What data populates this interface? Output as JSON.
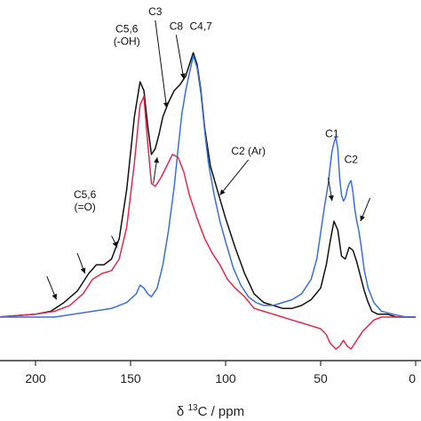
{
  "chart_data": {
    "type": "line",
    "xlabel_prefix": "δ ",
    "xlabel_sup": "13",
    "xlabel_suffix": "C  / ppm",
    "xlim": [
      220,
      0
    ],
    "x_reversed": true,
    "ylim": [
      -0.12,
      1.0
    ],
    "grid": false,
    "xticks": [
      200,
      150,
      100,
      50,
      0
    ],
    "series": [
      {
        "color": "#111111",
        "x": [
          220,
          200,
          192,
          185,
          178,
          172,
          168,
          164,
          160,
          156,
          152,
          148,
          145,
          143,
          141,
          139,
          137,
          135,
          133,
          130,
          127,
          124,
          121,
          119,
          117,
          115,
          113,
          111,
          108,
          104,
          100,
          95,
          90,
          85,
          80,
          75,
          70,
          65,
          60,
          55,
          50,
          47,
          45,
          43,
          41,
          39,
          37,
          35,
          33,
          31,
          29,
          27,
          25,
          23,
          20,
          15,
          10,
          5,
          0
        ],
        "y": [
          0.0,
          0.01,
          0.02,
          0.05,
          0.09,
          0.15,
          0.18,
          0.18,
          0.2,
          0.27,
          0.44,
          0.69,
          0.81,
          0.78,
          0.66,
          0.56,
          0.58,
          0.63,
          0.69,
          0.74,
          0.78,
          0.8,
          0.83,
          0.87,
          0.91,
          0.87,
          0.78,
          0.65,
          0.52,
          0.43,
          0.34,
          0.24,
          0.15,
          0.08,
          0.05,
          0.04,
          0.03,
          0.03,
          0.04,
          0.06,
          0.1,
          0.18,
          0.26,
          0.33,
          0.3,
          0.21,
          0.2,
          0.24,
          0.23,
          0.19,
          0.14,
          0.09,
          0.05,
          0.02,
          0.01,
          0.01,
          0.0,
          0.0,
          0.0
        ]
      },
      {
        "color": "#e02a4a",
        "x": [
          220,
          200,
          190,
          182,
          175,
          170,
          165,
          160,
          156,
          152,
          148,
          145,
          143,
          141,
          139,
          137,
          134,
          131,
          128,
          125,
          122,
          119,
          115,
          111,
          107,
          103,
          99,
          95,
          90,
          85,
          80,
          75,
          70,
          65,
          60,
          55,
          50,
          47,
          45,
          42,
          40,
          38,
          36,
          34,
          32,
          30,
          28,
          25,
          22,
          18,
          12,
          5,
          0
        ],
        "y": [
          0.0,
          0.01,
          0.02,
          0.04,
          0.08,
          0.13,
          0.15,
          0.16,
          0.2,
          0.31,
          0.53,
          0.73,
          0.76,
          0.6,
          0.46,
          0.45,
          0.48,
          0.52,
          0.56,
          0.55,
          0.5,
          0.42,
          0.34,
          0.27,
          0.22,
          0.18,
          0.13,
          0.1,
          0.07,
          0.03,
          0.02,
          0.01,
          0.0,
          -0.01,
          -0.02,
          -0.03,
          -0.04,
          -0.06,
          -0.09,
          -0.11,
          -0.1,
          -0.08,
          -0.1,
          -0.11,
          -0.09,
          -0.07,
          -0.05,
          -0.03,
          -0.01,
          0.0,
          0.0,
          0.0,
          0.0
        ]
      },
      {
        "color": "#3a6fd8",
        "x": [
          220,
          200,
          190,
          180,
          170,
          160,
          152,
          147,
          145,
          143,
          141,
          139,
          136,
          133,
          130,
          127,
          125,
          123,
          121,
          119,
          117,
          115,
          113,
          111,
          109,
          106,
          103,
          100,
          96,
          92,
          88,
          84,
          80,
          75,
          70,
          65,
          60,
          55,
          52,
          50,
          48,
          46,
          45,
          44,
          43,
          42,
          41,
          40,
          39,
          38,
          37,
          36,
          35,
          34,
          33,
          32,
          31,
          30,
          29,
          28,
          27,
          25,
          22,
          18,
          12,
          5,
          0
        ],
        "y": [
          0.0,
          0.0,
          0.0,
          0.01,
          0.02,
          0.03,
          0.05,
          0.08,
          0.11,
          0.1,
          0.08,
          0.07,
          0.1,
          0.18,
          0.3,
          0.45,
          0.58,
          0.7,
          0.78,
          0.84,
          0.9,
          0.86,
          0.77,
          0.64,
          0.53,
          0.42,
          0.33,
          0.26,
          0.17,
          0.11,
          0.07,
          0.05,
          0.04,
          0.04,
          0.05,
          0.06,
          0.08,
          0.13,
          0.2,
          0.29,
          0.38,
          0.46,
          0.52,
          0.57,
          0.6,
          0.62,
          0.58,
          0.48,
          0.42,
          0.4,
          0.41,
          0.44,
          0.46,
          0.47,
          0.43,
          0.37,
          0.33,
          0.3,
          0.26,
          0.21,
          0.16,
          0.1,
          0.05,
          0.02,
          0.01,
          0.0,
          0.0
        ]
      }
    ],
    "annotations": [
      {
        "lines": [
          "C5,6",
          "(-OH)"
        ],
        "tx": 152,
        "ty": 0.98,
        "ax": 148,
        "ay": 0.81,
        "arrow": false
      },
      {
        "lines": [
          "C3"
        ],
        "tx": 137,
        "ty": 1.04,
        "ax": 131,
        "ay": 0.72,
        "arrow": true
      },
      {
        "lines": [
          "C8"
        ],
        "tx": 126,
        "ty": 0.99,
        "ax": 122,
        "ay": 0.82,
        "arrow": true
      },
      {
        "lines": [
          "C4,7"
        ],
        "tx": 113,
        "ty": 0.99,
        "ax": 116,
        "ay": 0.92,
        "arrow": false
      },
      {
        "lines": [
          "C2 (Ar)"
        ],
        "tx": 88,
        "ty": 0.56,
        "ax": 103,
        "ay": 0.42,
        "arrow": true
      },
      {
        "lines": [
          "C5,6",
          "(=O)"
        ],
        "tx": 174,
        "ty": 0.41,
        "ax": 168,
        "ay": 0.19,
        "arrow": false
      },
      {
        "lines": [
          "C1"
        ],
        "tx": 44,
        "ty": 0.62,
        "ax": 42,
        "ay": 0.62,
        "arrow": false
      },
      {
        "lines": [
          "C2"
        ],
        "tx": 34,
        "ty": 0.53,
        "ax": 34,
        "ay": 0.46,
        "arrow": false
      },
      {
        "lines": [
          ""
        ],
        "tx": 46,
        "ty": 0.48,
        "ax": 44,
        "ay": 0.4,
        "arrow": true
      },
      {
        "lines": [
          ""
        ],
        "tx": 24,
        "ty": 0.41,
        "ax": 29,
        "ay": 0.33,
        "arrow": true
      },
      {
        "lines": [
          ""
        ],
        "tx": 194,
        "ty": 0.14,
        "ax": 189,
        "ay": 0.06,
        "arrow": true
      },
      {
        "lines": [
          ""
        ],
        "tx": 178,
        "ty": 0.22,
        "ax": 174,
        "ay": 0.15,
        "arrow": true
      },
      {
        "lines": [
          ""
        ],
        "tx": 160,
        "ty": 0.28,
        "ax": 157,
        "ay": 0.24,
        "arrow": true
      },
      {
        "lines": [
          ""
        ],
        "tx": 138,
        "ty": 0.46,
        "ax": 136,
        "ay": 0.55,
        "arrow": true
      }
    ]
  }
}
